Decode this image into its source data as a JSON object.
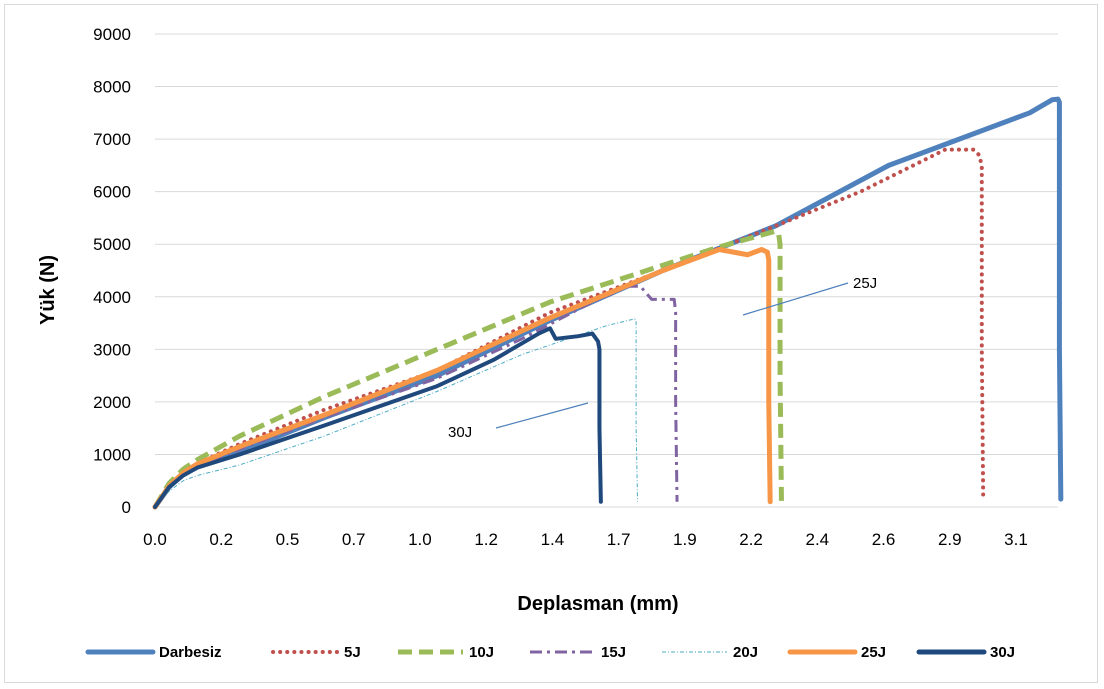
{
  "chart_data": {
    "type": "line",
    "title": "",
    "xlabel": "Deplasman (mm)",
    "ylabel": "Yük (N)",
    "xlim": [
      0,
      3.2
    ],
    "ylim": [
      0,
      9000
    ],
    "x_ticks": [
      "0.0",
      "0.2",
      "0.5",
      "0.7",
      "1.0",
      "1.2",
      "1.4",
      "1.7",
      "1.9",
      "2.2",
      "2.4",
      "2.6",
      "2.9",
      "3.1"
    ],
    "y_ticks": [
      "0",
      "1000",
      "2000",
      "3000",
      "4000",
      "5000",
      "6000",
      "7000",
      "8000",
      "9000"
    ],
    "grid": "horizontal",
    "legend_position": "bottom",
    "annotations": [
      {
        "text": "25J",
        "x": 2.48,
        "y": 4200
      },
      {
        "text": "30J",
        "x": 1.17,
        "y": 1400
      }
    ],
    "series": [
      {
        "name": "Darbesiz",
        "color": "#4f81bd",
        "dash": "solid",
        "x": [
          0,
          0.05,
          0.1,
          0.15,
          0.3,
          0.6,
          1.0,
          1.4,
          1.8,
          2.2,
          2.6,
          2.9,
          3.1,
          3.18,
          3.2,
          3.205,
          3.205,
          3.21
        ],
        "y": [
          0,
          380,
          620,
          760,
          1050,
          1700,
          2500,
          3550,
          4500,
          5350,
          6500,
          7100,
          7500,
          7750,
          7760,
          7700,
          3000,
          150
        ]
      },
      {
        "name": "5J",
        "color": "#c0504d",
        "dash": "dot",
        "x": [
          0,
          0.05,
          0.1,
          0.15,
          0.3,
          0.6,
          1.0,
          1.4,
          1.8,
          2.2,
          2.5,
          2.8,
          2.9,
          2.92,
          2.93,
          2.93,
          2.935
        ],
        "y": [
          0,
          420,
          660,
          830,
          1200,
          1850,
          2600,
          3700,
          4500,
          5350,
          6000,
          6800,
          6800,
          6700,
          6500,
          3000,
          150
        ]
      },
      {
        "name": "10J",
        "color": "#9bbb59",
        "dash": "dash",
        "x": [
          0,
          0.05,
          0.1,
          0.15,
          0.3,
          0.6,
          1.0,
          1.4,
          1.8,
          2.0,
          2.2,
          2.21,
          2.215,
          2.215,
          2.22
        ],
        "y": [
          0,
          450,
          720,
          900,
          1350,
          2100,
          3000,
          3900,
          4600,
          4950,
          5250,
          5200,
          5000,
          2500,
          100
        ]
      },
      {
        "name": "15J",
        "color": "#8064a2",
        "dash": "dashdot",
        "x": [
          0,
          0.05,
          0.1,
          0.15,
          0.3,
          0.6,
          1.0,
          1.3,
          1.55,
          1.68,
          1.72,
          1.76,
          1.84,
          1.845,
          1.845,
          1.85
        ],
        "y": [
          0,
          390,
          620,
          780,
          1100,
          1700,
          2450,
          3200,
          3900,
          4200,
          4200,
          3950,
          3950,
          3700,
          2000,
          100
        ]
      },
      {
        "name": "20J",
        "color": "#4bacc6",
        "dash": "thin",
        "x": [
          0,
          0.05,
          0.1,
          0.15,
          0.3,
          0.6,
          1.0,
          1.3,
          1.6,
          1.7,
          1.705,
          1.705,
          1.71
        ],
        "y": [
          0,
          300,
          500,
          600,
          800,
          1350,
          2200,
          2900,
          3450,
          3580,
          3550,
          1500,
          100
        ]
      },
      {
        "name": "25J",
        "color": "#f79646",
        "dash": "solid",
        "x": [
          0,
          0.05,
          0.1,
          0.15,
          0.3,
          0.6,
          1.0,
          1.4,
          1.8,
          2.0,
          2.05,
          2.1,
          2.15,
          2.17,
          2.175,
          2.175,
          2.18
        ],
        "y": [
          0,
          400,
          650,
          820,
          1150,
          1750,
          2600,
          3600,
          4500,
          4900,
          4850,
          4800,
          4900,
          4850,
          4700,
          2000,
          100
        ]
      },
      {
        "name": "30J",
        "color": "#1f497d",
        "dash": "solid",
        "x": [
          0,
          0.05,
          0.1,
          0.15,
          0.3,
          0.6,
          1.0,
          1.2,
          1.36,
          1.4,
          1.42,
          1.5,
          1.55,
          1.57,
          1.575,
          1.575,
          1.58
        ],
        "y": [
          0,
          380,
          600,
          750,
          1000,
          1550,
          2300,
          2800,
          3300,
          3400,
          3200,
          3250,
          3300,
          3150,
          3000,
          1500,
          100
        ]
      }
    ]
  }
}
